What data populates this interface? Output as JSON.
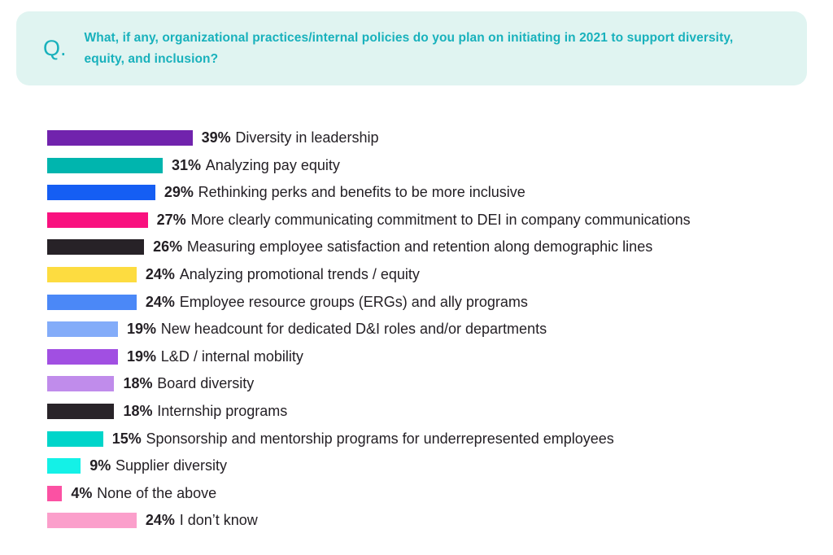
{
  "question": {
    "prefix": "Q.",
    "text": "What, if any, organizational practices/internal policies do you plan on initiating in 2021 to support diversity, equity, and inclusion?"
  },
  "colors": {
    "question_bg": "#E0F4F1",
    "question_text": "#18B1BC",
    "row_text": "#231F24"
  },
  "chart_data": {
    "type": "bar",
    "orientation": "horizontal",
    "value_unit": "%",
    "value_range": [
      0,
      39
    ],
    "grid": false,
    "legend": false,
    "rows": [
      {
        "value": 39,
        "label": "Diversity in leadership",
        "color": "#7123AD"
      },
      {
        "value": 31,
        "label": "Analyzing pay equity",
        "color": "#00B5AE"
      },
      {
        "value": 29,
        "label": "Rethinking perks and benefits to be more inclusive",
        "color": "#155EF3"
      },
      {
        "value": 27,
        "label": "More clearly communicating commitment to DEI in company communications",
        "color": "#F9117F"
      },
      {
        "value": 26,
        "label": "Measuring employee satisfaction and retention along demographic lines",
        "color": "#272227"
      },
      {
        "value": 24,
        "label": "Analyzing promotional trends / equity",
        "color": "#FDDC40"
      },
      {
        "value": 24,
        "label": "Employee resource groups (ERGs) and ally programs",
        "color": "#4B88F7"
      },
      {
        "value": 19,
        "label": "New headcount for dedicated D&I roles and/or departments",
        "color": "#83ACF9"
      },
      {
        "value": 19,
        "label": "L&D / internal mobility",
        "color": "#A14FE2"
      },
      {
        "value": 18,
        "label": "Board diversity",
        "color": "#C08CEB"
      },
      {
        "value": 18,
        "label": "Internship programs",
        "color": "#292429"
      },
      {
        "value": 15,
        "label": "Sponsorship and mentorship programs for underrepresented employees",
        "color": "#00D5CA"
      },
      {
        "value": 9,
        "label": "Supplier diversity",
        "color": "#14F1E7"
      },
      {
        "value": 4,
        "label": "None of the above",
        "color": "#FB51A3"
      },
      {
        "value": 24,
        "label": "I don’t know",
        "color": "#FB9FCB"
      }
    ]
  }
}
